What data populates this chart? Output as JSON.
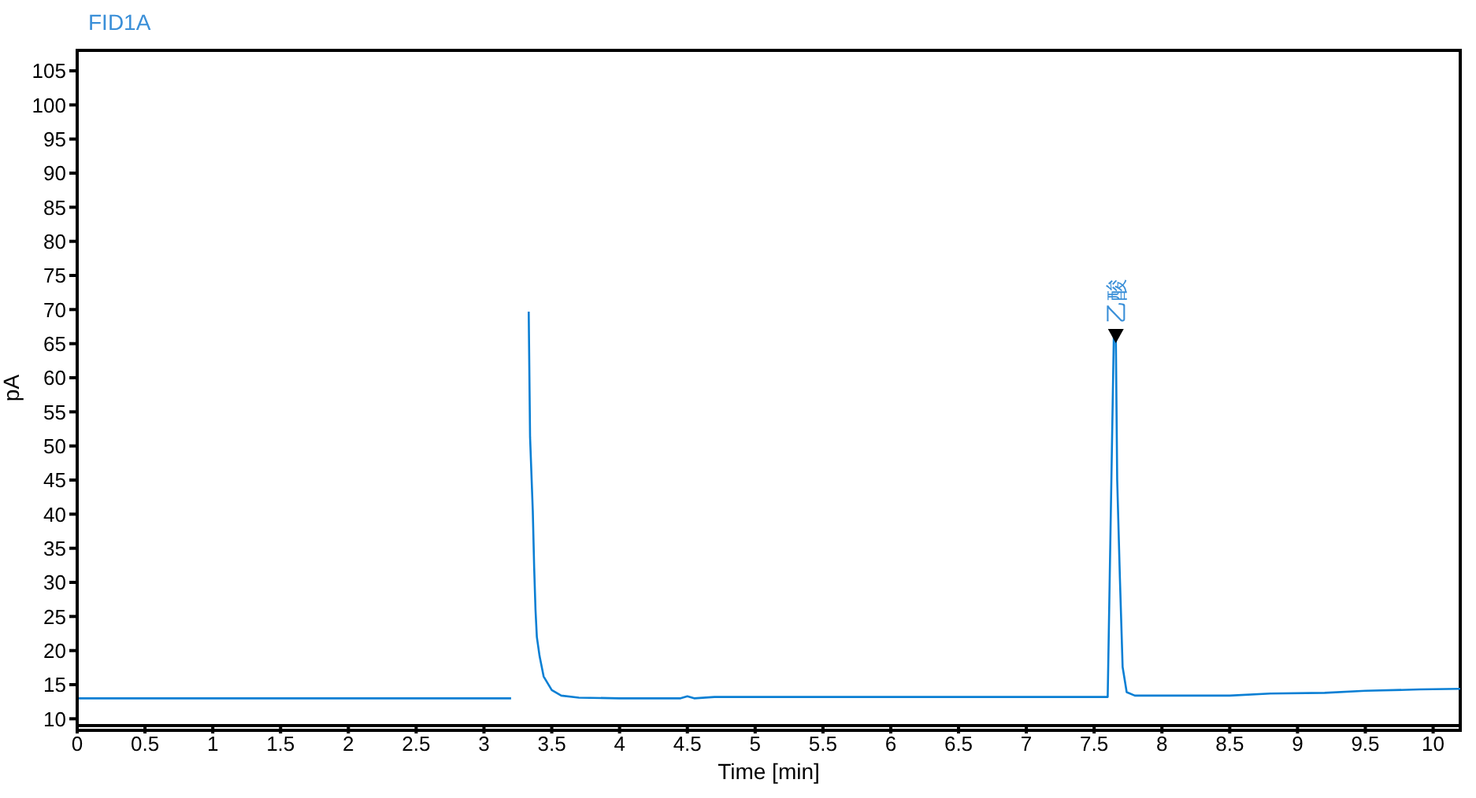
{
  "chart_data": {
    "type": "line",
    "title": "FID1A",
    "xlabel": "Time [min]",
    "ylabel": "pA",
    "xlim": [
      0,
      10.2
    ],
    "ylim": [
      9,
      108
    ],
    "xticks": [
      0,
      0.5,
      1,
      1.5,
      2,
      2.5,
      3,
      3.5,
      4,
      4.5,
      5,
      5.5,
      6,
      6.5,
      7,
      7.5,
      8,
      8.5,
      9,
      9.5,
      10
    ],
    "yticks": [
      10,
      15,
      20,
      25,
      30,
      35,
      40,
      45,
      50,
      55,
      60,
      65,
      70,
      75,
      80,
      85,
      90,
      95,
      100,
      105
    ],
    "annotations": [
      {
        "text": "乙酸",
        "x": 7.66,
        "y": 66
      }
    ],
    "series": [
      {
        "color": "#0a7fd4",
        "x": [
          0,
          1,
          2,
          3,
          3.2,
          3.205,
          3.21,
          3.32,
          3.33,
          3.34,
          3.36,
          3.37,
          3.38,
          3.39,
          3.41,
          3.44,
          3.5,
          3.57,
          3.7,
          4.0,
          4.45,
          4.5,
          4.55,
          4.7,
          5.5,
          6.5,
          7.6,
          7.645,
          7.66,
          7.67,
          7.69,
          7.71,
          7.74,
          7.8,
          8.5,
          8.8,
          9.2,
          9.5,
          9.9,
          10.2
        ],
        "values": [
          13,
          13,
          13,
          13,
          13,
          null,
          null,
          null,
          69.7,
          51.3,
          40.5,
          32.3,
          26,
          22,
          19.2,
          16.2,
          14.2,
          13.4,
          13.1,
          13,
          13,
          13.3,
          13,
          13.2,
          13.2,
          13.2,
          13.2,
          66,
          66,
          45,
          30.6,
          17.6,
          13.9,
          13.4,
          13.4,
          13.7,
          13.8,
          14.1,
          14.3,
          14.4
        ]
      }
    ]
  }
}
